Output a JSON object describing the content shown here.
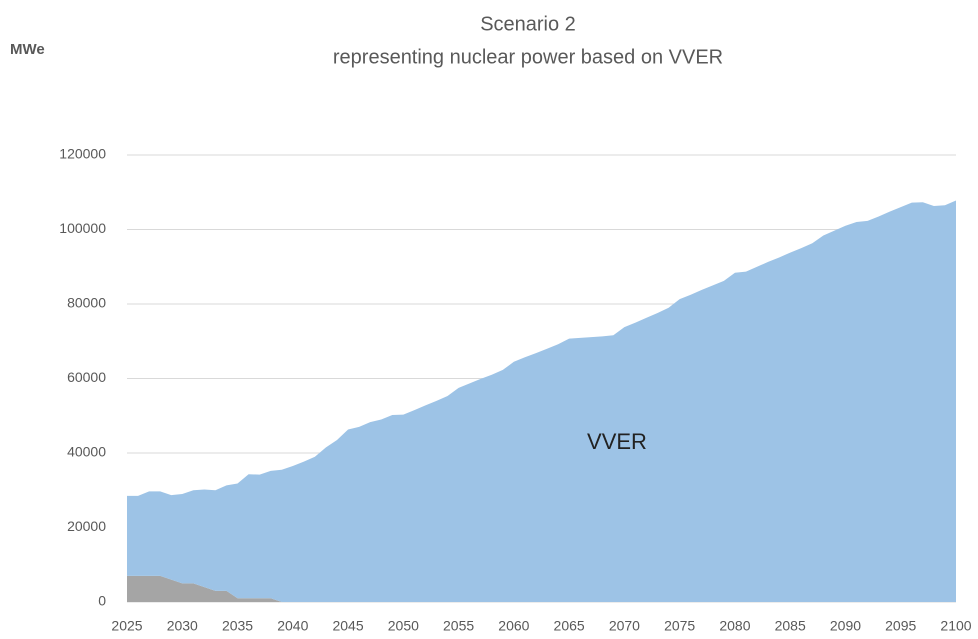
{
  "chart_data": {
    "type": "stacked_area",
    "title": "Scenario 2",
    "subtitle": "representing nuclear power based on VVER",
    "y_label": "MWe",
    "x": [
      2025,
      2026,
      2027,
      2028,
      2029,
      2030,
      2031,
      2032,
      2033,
      2034,
      2035,
      2036,
      2037,
      2038,
      2039,
      2040,
      2041,
      2042,
      2043,
      2044,
      2045,
      2046,
      2047,
      2048,
      2049,
      2050,
      2051,
      2052,
      2053,
      2054,
      2055,
      2056,
      2057,
      2058,
      2059,
      2060,
      2061,
      2062,
      2063,
      2064,
      2065,
      2066,
      2067,
      2068,
      2069,
      2070,
      2071,
      2072,
      2073,
      2074,
      2075,
      2076,
      2077,
      2078,
      2079,
      2080,
      2081,
      2082,
      2083,
      2084,
      2085,
      2086,
      2087,
      2088,
      2089,
      2090,
      2091,
      2092,
      2093,
      2094,
      2095,
      2096,
      2097,
      2098,
      2099,
      2100
    ],
    "series": [
      {
        "color": "#a5a5a5",
        "values": [
          7000,
          7000,
          7000,
          7000,
          6000,
          5000,
          5000,
          4000,
          3000,
          3000,
          1000,
          1000,
          1000,
          1000,
          0,
          0,
          0,
          0,
          0,
          0,
          0,
          0,
          0,
          0,
          0,
          0,
          0,
          0,
          0,
          0,
          0,
          0,
          0,
          0,
          0,
          0,
          0,
          0,
          0,
          0,
          0,
          0,
          0,
          0,
          0,
          0,
          0,
          0,
          0,
          0,
          0,
          0,
          0,
          0,
          0,
          0,
          0,
          0,
          0,
          0,
          0,
          0,
          0,
          0,
          0,
          0,
          0,
          0,
          0,
          0,
          0,
          0,
          0,
          0,
          0,
          0
        ]
      },
      {
        "name": "VVER",
        "color": "#9dc3e6",
        "values": [
          21500,
          21500,
          22700,
          22700,
          22700,
          24000,
          25000,
          26200,
          27000,
          28300,
          30800,
          33300,
          33200,
          34200,
          35500,
          36500,
          37700,
          39000,
          41500,
          43500,
          46300,
          47000,
          48300,
          49000,
          50200,
          50300,
          51500,
          52800,
          54000,
          55300,
          57500,
          58700,
          59900,
          61000,
          62300,
          64500,
          65700,
          66800,
          68000,
          69200,
          70700,
          70900,
          71100,
          71300,
          71600,
          73800,
          75000,
          76300,
          77600,
          79000,
          81300,
          82500,
          83800,
          85000,
          86200,
          88400,
          88700,
          90000,
          91300,
          92500,
          93800,
          95000,
          96300,
          98400,
          99700,
          101000,
          102000,
          102300,
          103500,
          104800,
          106000,
          107200,
          107300,
          106300,
          106500,
          107800
        ]
      }
    ],
    "xlim": [
      2025,
      2100
    ],
    "xticks": [
      2025,
      2030,
      2035,
      2040,
      2045,
      2050,
      2055,
      2060,
      2065,
      2070,
      2075,
      2080,
      2085,
      2090,
      2095,
      2100
    ],
    "ylim": [
      0,
      120000
    ],
    "yticks": [
      0,
      20000,
      40000,
      60000,
      80000,
      100000,
      120000
    ],
    "grid": true
  }
}
